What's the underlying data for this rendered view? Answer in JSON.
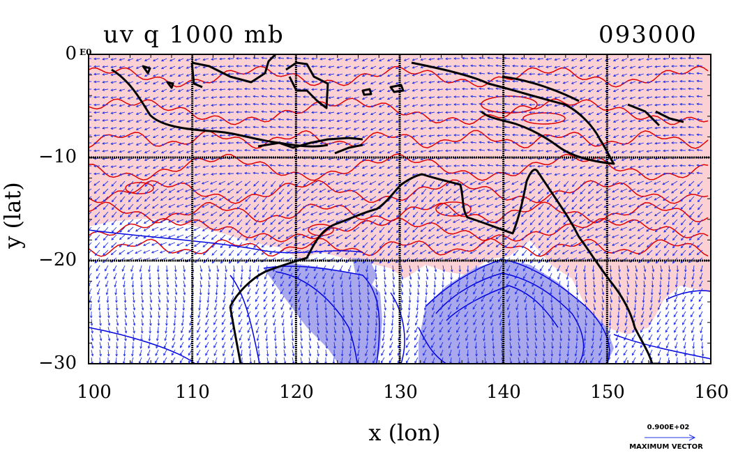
{
  "title_left": "uv  q  1000  mb",
  "title_right": "093000",
  "corner_exponent": "E0",
  "xlabel": "x (lon)",
  "ylabel": "y (lat)",
  "x_ticks": [
    "100",
    "110",
    "120",
    "130",
    "140",
    "150",
    "160"
  ],
  "y_ticks": [
    "0",
    "−10",
    "−20",
    "−30"
  ],
  "x_range": [
    100,
    160
  ],
  "y_range": [
    -30,
    0
  ],
  "reference_vector": {
    "value": "0.900E+02",
    "label": "MAXIMUM VECTOR"
  },
  "colors": {
    "moist_fill": "#fbd1d3",
    "dry_fill": "#a9a8ec",
    "moist_contour": "#e00000",
    "dry_contour": "#0000e0",
    "vector": "#2030e8",
    "coastline": "#000000",
    "grid": "#000000"
  },
  "grid_lines": {
    "lon": [
      110,
      120,
      130,
      140,
      150
    ],
    "lat": [
      -10,
      -20
    ]
  }
}
